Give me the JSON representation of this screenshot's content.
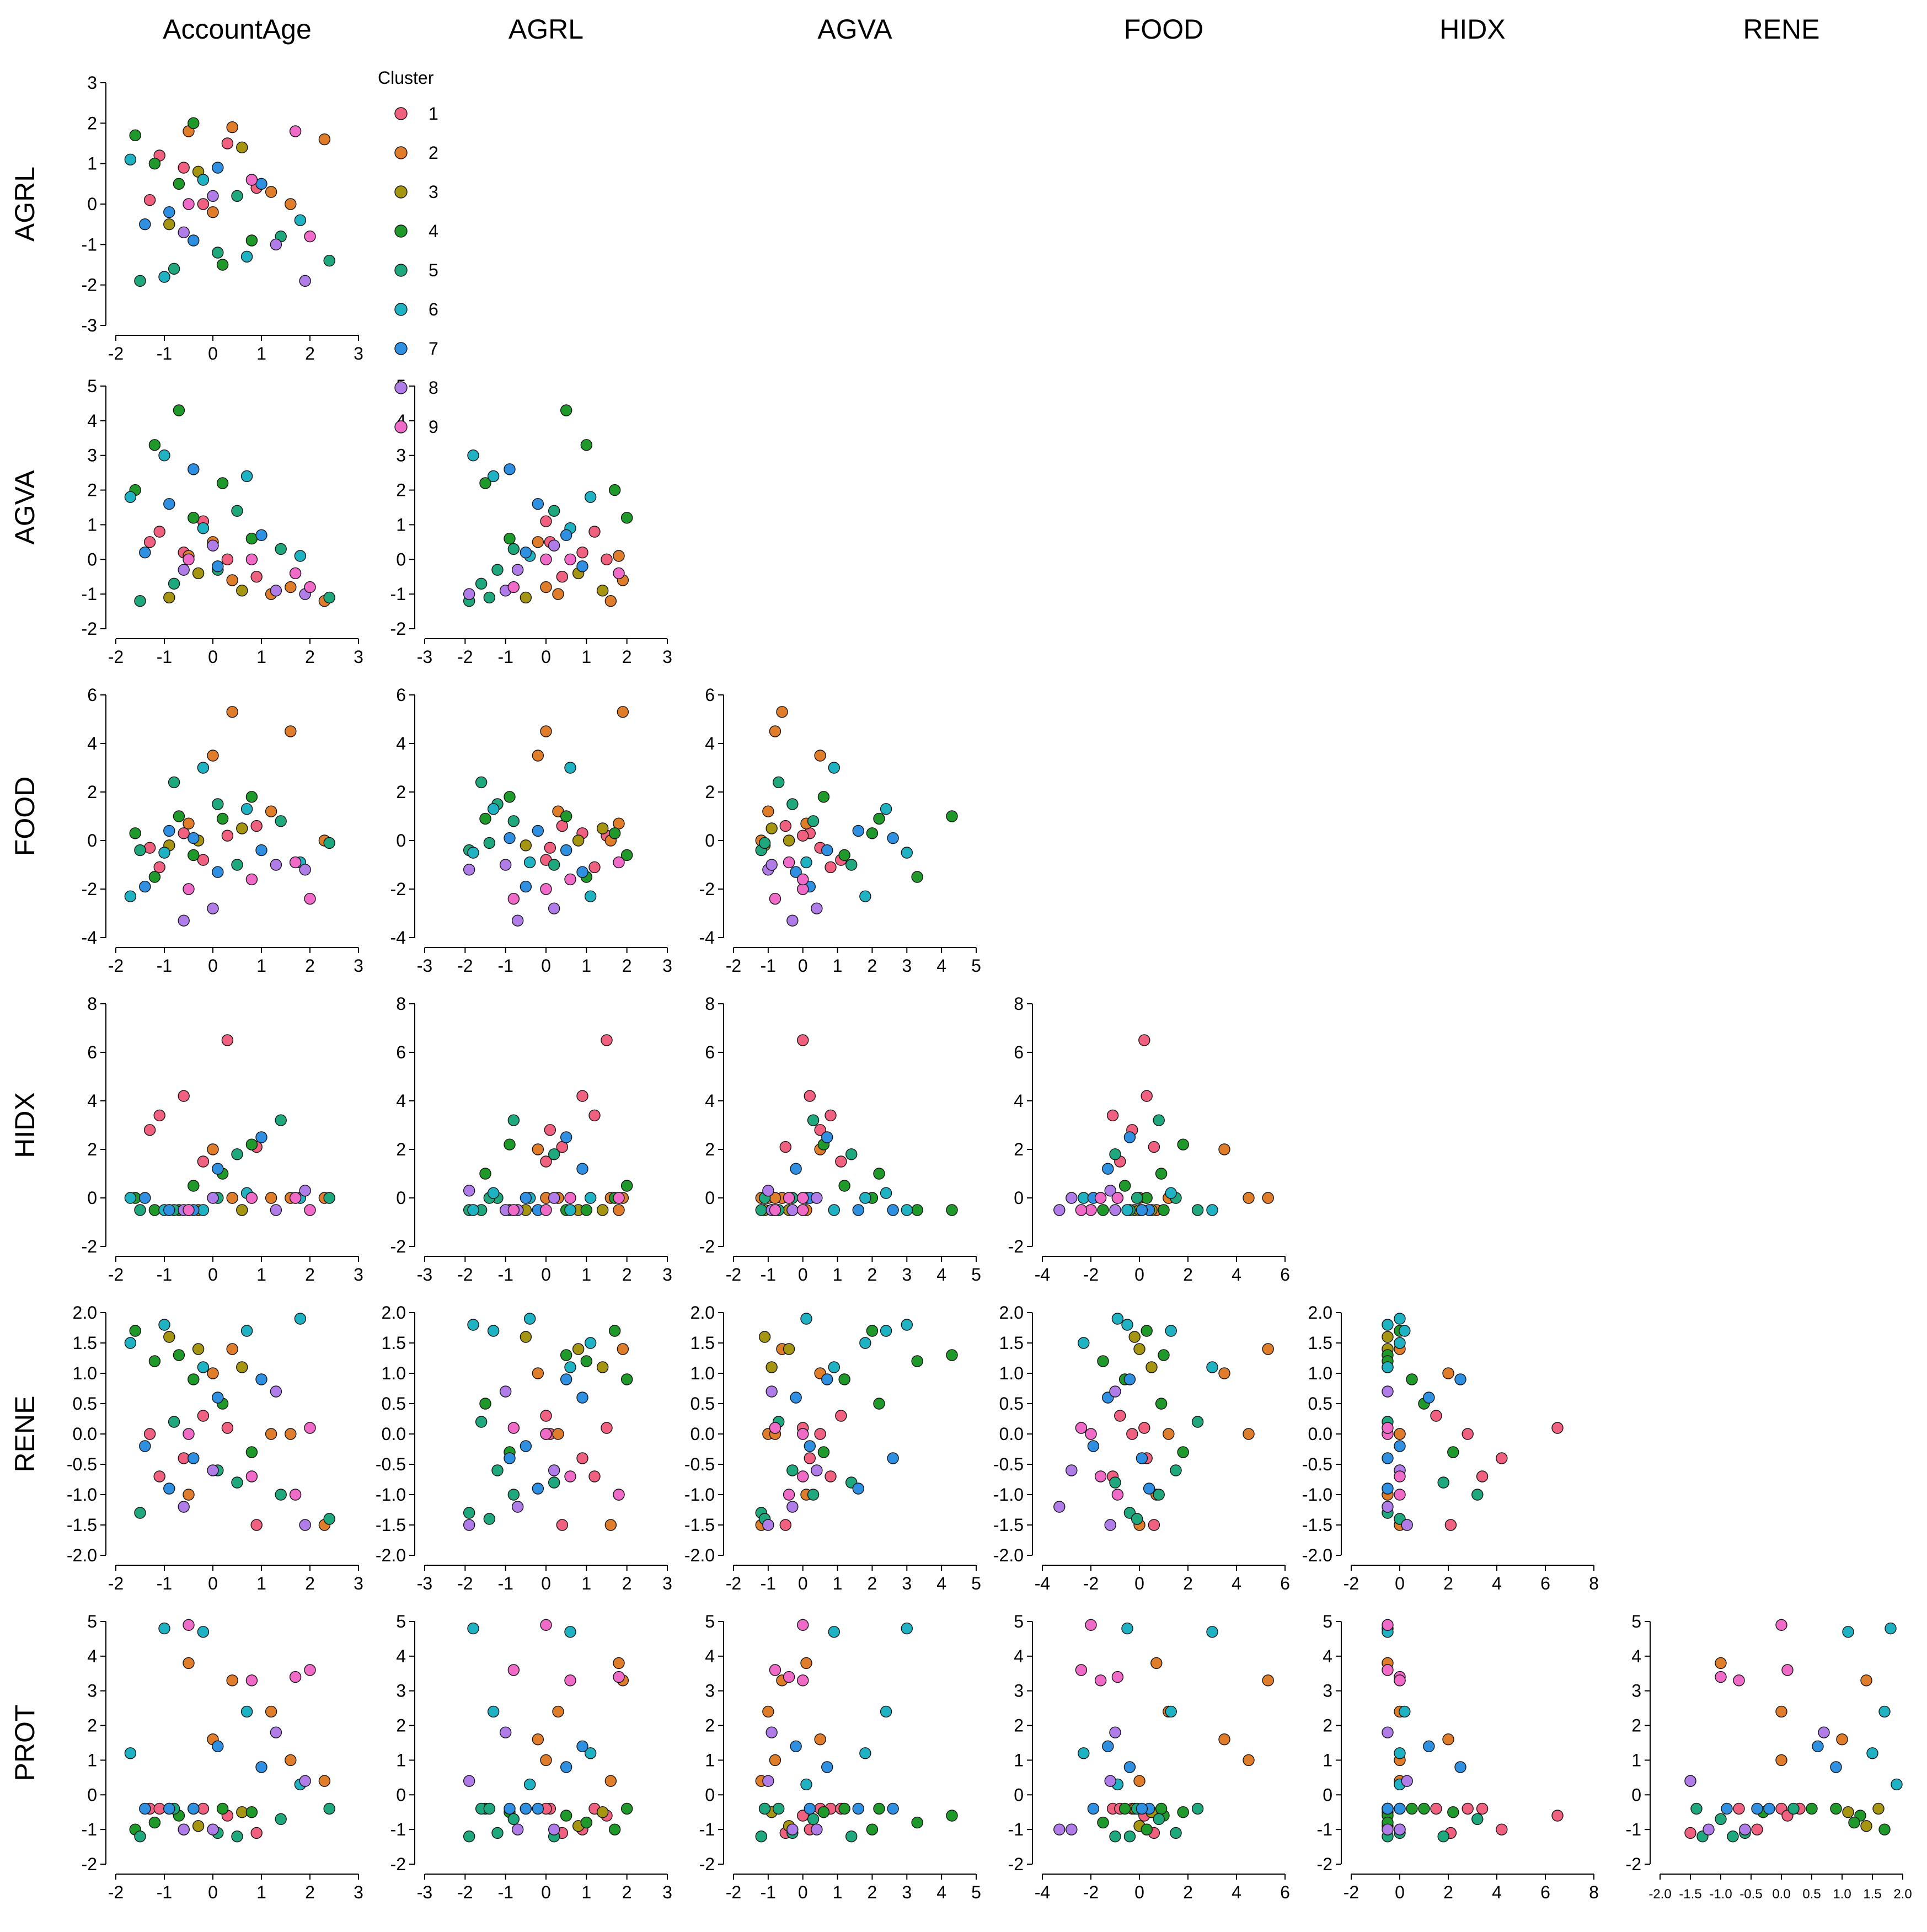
{
  "chart_data": {
    "type": "scatter",
    "title": "",
    "variables": [
      "AccountAge",
      "AGRL",
      "AGVA",
      "FOOD",
      "HIDX",
      "RENE",
      "PROT"
    ],
    "column_titles": [
      "AccountAge",
      "AGRL",
      "AGVA",
      "FOOD",
      "HIDX",
      "RENE"
    ],
    "row_titles": [
      "AGRL",
      "AGVA",
      "FOOD",
      "HIDX",
      "RENE",
      "PROT"
    ],
    "axis_ranges": {
      "AGRL_y": [
        -3,
        3
      ],
      "AGVA_y": [
        -2,
        5
      ],
      "FOOD_y": [
        -4,
        6
      ],
      "HIDX_y": [
        -2,
        8
      ],
      "RENE_y": [
        -2.0,
        2.0
      ],
      "PROT_y": [
        -2,
        5
      ]
    },
    "panels": [
      {
        "row": "AGRL",
        "col": "AccountAge",
        "xlim": [
          -2,
          3
        ],
        "xticks": [
          "-2",
          "-1",
          "0",
          "1",
          "2",
          "3"
        ],
        "ylim": [
          -3,
          3
        ],
        "yticks": [
          "-3",
          "-2",
          "-1",
          "0",
          "1",
          "2",
          "3"
        ]
      },
      {
        "row": "AGVA",
        "col": "AccountAge",
        "xlim": [
          -2,
          3
        ],
        "xticks": [
          "-2",
          "-1",
          "0",
          "1",
          "2",
          "3"
        ],
        "ylim": [
          -2,
          5
        ],
        "yticks": [
          "-2",
          "-1",
          "0",
          "1",
          "2",
          "3",
          "4",
          "5"
        ]
      },
      {
        "row": "AGVA",
        "col": "AGRL",
        "xlim": [
          -3,
          3
        ],
        "xticks": [
          "-3",
          "-2",
          "-1",
          "0",
          "1",
          "2",
          "3"
        ],
        "ylim": [
          -2,
          5
        ],
        "yticks": [
          "-2",
          "-1",
          "0",
          "1",
          "2",
          "3",
          "4",
          "5"
        ]
      },
      {
        "row": "FOOD",
        "col": "AccountAge",
        "xlim": [
          -2,
          3
        ],
        "xticks": [
          "-2",
          "-1",
          "0",
          "1",
          "2",
          "3"
        ],
        "ylim": [
          -4,
          6
        ],
        "yticks": [
          "-4",
          "-2",
          "0",
          "2",
          "4",
          "6"
        ]
      },
      {
        "row": "FOOD",
        "col": "AGRL",
        "xlim": [
          -3,
          3
        ],
        "xticks": [
          "-3",
          "-2",
          "-1",
          "0",
          "1",
          "2",
          "3"
        ],
        "ylim": [
          -4,
          6
        ],
        "yticks": [
          "-4",
          "-2",
          "0",
          "2",
          "4",
          "6"
        ]
      },
      {
        "row": "FOOD",
        "col": "AGVA",
        "xlim": [
          -2,
          5
        ],
        "xticks": [
          "-2",
          "-1",
          "0",
          "1",
          "2",
          "3",
          "4",
          "5"
        ],
        "ylim": [
          -4,
          6
        ],
        "yticks": [
          "-4",
          "-2",
          "0",
          "2",
          "4",
          "6"
        ]
      },
      {
        "row": "HIDX",
        "col": "AccountAge",
        "xlim": [
          -2,
          3
        ],
        "xticks": [
          "-2",
          "-1",
          "0",
          "1",
          "2",
          "3"
        ],
        "ylim": [
          -2,
          8
        ],
        "yticks": [
          "-2",
          "0",
          "2",
          "4",
          "6",
          "8"
        ]
      },
      {
        "row": "HIDX",
        "col": "AGRL",
        "xlim": [
          -3,
          3
        ],
        "xticks": [
          "-3",
          "-2",
          "-1",
          "0",
          "1",
          "2",
          "3"
        ],
        "ylim": [
          -2,
          8
        ],
        "yticks": [
          "-2",
          "0",
          "2",
          "4",
          "6",
          "8"
        ]
      },
      {
        "row": "HIDX",
        "col": "AGVA",
        "xlim": [
          -2,
          5
        ],
        "xticks": [
          "-2",
          "-1",
          "0",
          "1",
          "2",
          "3",
          "4",
          "5"
        ],
        "ylim": [
          -2,
          8
        ],
        "yticks": [
          "-2",
          "0",
          "2",
          "4",
          "6",
          "8"
        ]
      },
      {
        "row": "HIDX",
        "col": "FOOD",
        "xlim": [
          -4,
          6
        ],
        "xticks": [
          "-4",
          "-2",
          "0",
          "2",
          "4",
          "6"
        ],
        "ylim": [
          -2,
          8
        ],
        "yticks": [
          "-2",
          "0",
          "2",
          "4",
          "6",
          "8"
        ]
      },
      {
        "row": "RENE",
        "col": "AccountAge",
        "xlim": [
          -2,
          3
        ],
        "xticks": [
          "-2",
          "-1",
          "0",
          "1",
          "2",
          "3"
        ],
        "ylim": [
          -2.0,
          2.0
        ],
        "yticks": [
          "-2.0",
          "-1.5",
          "-1.0",
          "-0.5",
          "0.0",
          "0.5",
          "1.0",
          "1.5",
          "2.0"
        ]
      },
      {
        "row": "RENE",
        "col": "AGRL",
        "xlim": [
          -3,
          3
        ],
        "xticks": [
          "-3",
          "-2",
          "-1",
          "0",
          "1",
          "2",
          "3"
        ],
        "ylim": [
          -2.0,
          2.0
        ],
        "yticks": [
          "-2.0",
          "-1.5",
          "-1.0",
          "-0.5",
          "0.0",
          "0.5",
          "1.0",
          "1.5",
          "2.0"
        ]
      },
      {
        "row": "RENE",
        "col": "AGVA",
        "xlim": [
          -2,
          5
        ],
        "xticks": [
          "-2",
          "-1",
          "0",
          "1",
          "2",
          "3",
          "4",
          "5"
        ],
        "ylim": [
          -2.0,
          2.0
        ],
        "yticks": [
          "-2.0",
          "-1.5",
          "-1.0",
          "-0.5",
          "0.0",
          "0.5",
          "1.0",
          "1.5",
          "2.0"
        ]
      },
      {
        "row": "RENE",
        "col": "FOOD",
        "xlim": [
          -4,
          6
        ],
        "xticks": [
          "-4",
          "-2",
          "0",
          "2",
          "4",
          "6"
        ],
        "ylim": [
          -2.0,
          2.0
        ],
        "yticks": [
          "-2.0",
          "-1.5",
          "-1.0",
          "-0.5",
          "0.0",
          "0.5",
          "1.0",
          "1.5",
          "2.0"
        ]
      },
      {
        "row": "RENE",
        "col": "HIDX",
        "xlim": [
          -2,
          8
        ],
        "xticks": [
          "-2",
          "0",
          "2",
          "4",
          "6",
          "8"
        ],
        "ylim": [
          -2.0,
          2.0
        ],
        "yticks": [
          "-2.0",
          "-1.5",
          "-1.0",
          "-0.5",
          "0.0",
          "0.5",
          "1.0",
          "1.5",
          "2.0"
        ]
      },
      {
        "row": "PROT",
        "col": "AccountAge",
        "xlim": [
          -2,
          3
        ],
        "xticks": [
          "-2",
          "-1",
          "0",
          "1",
          "2",
          "3"
        ],
        "ylim": [
          -2,
          5
        ],
        "yticks": [
          "-2",
          "-1",
          "0",
          "1",
          "2",
          "3",
          "4",
          "5"
        ]
      },
      {
        "row": "PROT",
        "col": "AGRL",
        "xlim": [
          -3,
          3
        ],
        "xticks": [
          "-3",
          "-2",
          "-1",
          "0",
          "1",
          "2",
          "3"
        ],
        "ylim": [
          -2,
          5
        ],
        "yticks": [
          "-2",
          "-1",
          "0",
          "1",
          "2",
          "3",
          "4",
          "5"
        ]
      },
      {
        "row": "PROT",
        "col": "AGVA",
        "xlim": [
          -2,
          5
        ],
        "xticks": [
          "-2",
          "-1",
          "0",
          "1",
          "2",
          "3",
          "4",
          "5"
        ],
        "ylim": [
          -2,
          5
        ],
        "yticks": [
          "-2",
          "-1",
          "0",
          "1",
          "2",
          "3",
          "4",
          "5"
        ]
      },
      {
        "row": "PROT",
        "col": "FOOD",
        "xlim": [
          -4,
          6
        ],
        "xticks": [
          "-4",
          "-2",
          "0",
          "2",
          "4",
          "6"
        ],
        "ylim": [
          -2,
          5
        ],
        "yticks": [
          "-2",
          "-1",
          "0",
          "1",
          "2",
          "3",
          "4",
          "5"
        ]
      },
      {
        "row": "PROT",
        "col": "HIDX",
        "xlim": [
          -2,
          8
        ],
        "xticks": [
          "-2",
          "0",
          "2",
          "4",
          "6",
          "8"
        ],
        "ylim": [
          -2,
          5
        ],
        "yticks": [
          "-2",
          "-1",
          "0",
          "1",
          "2",
          "3",
          "4",
          "5"
        ]
      },
      {
        "row": "PROT",
        "col": "RENE",
        "xlim": [
          -2.0,
          2.0
        ],
        "xticks": [
          "-2.0",
          "-1.5",
          "-1.0",
          "-0.5",
          "0.0",
          "0.5",
          "1.0",
          "1.5",
          "2.0"
        ],
        "ylim": [
          -2,
          5
        ],
        "yticks": [
          "-2",
          "-1",
          "0",
          "1",
          "2",
          "3",
          "4",
          "5"
        ]
      }
    ],
    "legend": {
      "title": "Cluster",
      "position": "top-left, beside first panel",
      "entries": [
        "1",
        "2",
        "3",
        "4",
        "5",
        "6",
        "7",
        "8",
        "9"
      ]
    },
    "cluster_colors": [
      "#f0607f",
      "#e07d2a",
      "#a69510",
      "#1f9a2a",
      "#1fa77e",
      "#1fb2c2",
      "#2f8fe0",
      "#b07de8",
      "#f06ac8"
    ],
    "grid": false,
    "samples": [
      {
        "cluster": 1,
        "AccountAge": -1.3,
        "AGRL": 0.1,
        "AGVA": 0.5,
        "FOOD": -0.3,
        "HIDX": 2.8,
        "RENE": 0.0,
        "PROT": -0.4
      },
      {
        "cluster": 1,
        "AccountAge": -0.6,
        "AGRL": 0.9,
        "AGVA": 0.2,
        "FOOD": 0.3,
        "HIDX": 4.2,
        "RENE": -0.4,
        "PROT": -1.0
      },
      {
        "cluster": 1,
        "AccountAge": 0.3,
        "AGRL": 1.5,
        "AGVA": 0.0,
        "FOOD": 0.2,
        "HIDX": 6.5,
        "RENE": 0.1,
        "PROT": -0.6
      },
      {
        "cluster": 1,
        "AccountAge": -1.1,
        "AGRL": 1.2,
        "AGVA": 0.8,
        "FOOD": -1.1,
        "HIDX": 3.4,
        "RENE": -0.7,
        "PROT": -0.4
      },
      {
        "cluster": 1,
        "AccountAge": 0.9,
        "AGRL": 0.4,
        "AGVA": -0.5,
        "FOOD": 0.6,
        "HIDX": 2.1,
        "RENE": -1.5,
        "PROT": -1.1
      },
      {
        "cluster": 1,
        "AccountAge": -0.2,
        "AGRL": 0.0,
        "AGVA": 1.1,
        "FOOD": -0.8,
        "HIDX": 1.5,
        "RENE": 0.3,
        "PROT": -0.4
      },
      {
        "cluster": 2,
        "AccountAge": 0.4,
        "AGRL": 1.9,
        "AGVA": -0.6,
        "FOOD": 5.3,
        "HIDX": 0.0,
        "RENE": 1.4,
        "PROT": 3.3
      },
      {
        "cluster": 2,
        "AccountAge": 1.2,
        "AGRL": 0.3,
        "AGVA": -1.0,
        "FOOD": 1.2,
        "HIDX": 0.0,
        "RENE": 0.0,
        "PROT": 2.4
      },
      {
        "cluster": 2,
        "AccountAge": 2.3,
        "AGRL": 1.6,
        "AGVA": -1.2,
        "FOOD": 0.0,
        "HIDX": 0.0,
        "RENE": -1.5,
        "PROT": 0.4
      },
      {
        "cluster": 2,
        "AccountAge": 0.0,
        "AGRL": -0.2,
        "AGVA": 0.5,
        "FOOD": 3.5,
        "HIDX": 2.0,
        "RENE": 1.0,
        "PROT": 1.6
      },
      {
        "cluster": 2,
        "AccountAge": -0.5,
        "AGRL": 1.8,
        "AGVA": 0.1,
        "FOOD": 0.7,
        "HIDX": -0.5,
        "RENE": -1.0,
        "PROT": 3.8
      },
      {
        "cluster": 2,
        "AccountAge": 1.6,
        "AGRL": 0.0,
        "AGVA": -0.8,
        "FOOD": 4.5,
        "HIDX": 0.0,
        "RENE": 0.0,
        "PROT": 1.0
      },
      {
        "cluster": 3,
        "AccountAge": -0.9,
        "AGRL": -0.5,
        "AGVA": -1.1,
        "FOOD": -0.2,
        "HIDX": -0.5,
        "RENE": 1.6,
        "PROT": -0.4
      },
      {
        "cluster": 3,
        "AccountAge": 0.6,
        "AGRL": 1.4,
        "AGVA": -0.9,
        "FOOD": 0.5,
        "HIDX": -0.5,
        "RENE": 1.1,
        "PROT": -0.5
      },
      {
        "cluster": 3,
        "AccountAge": -0.3,
        "AGRL": 0.8,
        "AGVA": -0.4,
        "FOOD": 0.0,
        "HIDX": -0.5,
        "RENE": 1.4,
        "PROT": -0.9
      },
      {
        "cluster": 4,
        "AccountAge": -0.7,
        "AGRL": 0.5,
        "AGVA": 4.3,
        "FOOD": 1.0,
        "HIDX": -0.5,
        "RENE": 1.3,
        "PROT": -0.6
      },
      {
        "cluster": 4,
        "AccountAge": -1.6,
        "AGRL": 1.7,
        "AGVA": 2.0,
        "FOOD": 0.3,
        "HIDX": 0.0,
        "RENE": 1.7,
        "PROT": -1.0
      },
      {
        "cluster": 4,
        "AccountAge": -0.4,
        "AGRL": 2.0,
        "AGVA": 1.2,
        "FOOD": -0.6,
        "HIDX": 0.5,
        "RENE": 0.9,
        "PROT": -0.4
      },
      {
        "cluster": 4,
        "AccountAge": 0.8,
        "AGRL": -0.9,
        "AGVA": 0.6,
        "FOOD": 1.8,
        "HIDX": 2.2,
        "RENE": -0.3,
        "PROT": -0.5
      },
      {
        "cluster": 4,
        "AccountAge": -1.2,
        "AGRL": 1.0,
        "AGVA": 3.3,
        "FOOD": -1.5,
        "HIDX": -0.5,
        "RENE": 1.2,
        "PROT": -0.8
      },
      {
        "cluster": 4,
        "AccountAge": 0.2,
        "AGRL": -1.5,
        "AGVA": 2.2,
        "FOOD": 0.9,
        "HIDX": 1.0,
        "RENE": 0.5,
        "PROT": -0.4
      },
      {
        "cluster": 5,
        "AccountAge": -1.5,
        "AGRL": -1.9,
        "AGVA": -1.2,
        "FOOD": -0.4,
        "HIDX": -0.5,
        "RENE": -1.3,
        "PROT": -1.2
      },
      {
        "cluster": 5,
        "AccountAge": 0.1,
        "AGRL": -1.2,
        "AGVA": -0.3,
        "FOOD": 1.5,
        "HIDX": 0.0,
        "RENE": -0.6,
        "PROT": -1.1
      },
      {
        "cluster": 5,
        "AccountAge": 1.4,
        "AGRL": -0.8,
        "AGVA": 0.3,
        "FOOD": 0.8,
        "HIDX": 3.2,
        "RENE": -1.0,
        "PROT": -0.7
      },
      {
        "cluster": 5,
        "AccountAge": -0.8,
        "AGRL": -1.6,
        "AGVA": -0.7,
        "FOOD": 2.4,
        "HIDX": -0.5,
        "RENE": 0.2,
        "PROT": -0.4
      },
      {
        "cluster": 5,
        "AccountAge": 2.4,
        "AGRL": -1.4,
        "AGVA": -1.1,
        "FOOD": -0.1,
        "HIDX": 0.0,
        "RENE": -1.4,
        "PROT": -0.4
      },
      {
        "cluster": 5,
        "AccountAge": 0.5,
        "AGRL": 0.2,
        "AGVA": 1.4,
        "FOOD": -1.0,
        "HIDX": 1.8,
        "RENE": -0.8,
        "PROT": -1.2
      },
      {
        "cluster": 6,
        "AccountAge": -1.0,
        "AGRL": -1.8,
        "AGVA": 3.0,
        "FOOD": -0.5,
        "HIDX": -0.5,
        "RENE": 1.8,
        "PROT": 4.8
      },
      {
        "cluster": 6,
        "AccountAge": -1.7,
        "AGRL": 1.1,
        "AGVA": 1.8,
        "FOOD": -2.3,
        "HIDX": 0.0,
        "RENE": 1.5,
        "PROT": 1.2
      },
      {
        "cluster": 6,
        "AccountAge": 0.7,
        "AGRL": -1.3,
        "AGVA": 2.4,
        "FOOD": 1.3,
        "HIDX": 0.2,
        "RENE": 1.7,
        "PROT": 2.4
      },
      {
        "cluster": 6,
        "AccountAge": -0.2,
        "AGRL": 0.6,
        "AGVA": 0.9,
        "FOOD": 3.0,
        "HIDX": -0.5,
        "RENE": 1.1,
        "PROT": 4.7
      },
      {
        "cluster": 6,
        "AccountAge": 1.8,
        "AGRL": -0.4,
        "AGVA": 0.1,
        "FOOD": -0.9,
        "HIDX": 0.0,
        "RENE": 1.9,
        "PROT": 0.3
      },
      {
        "cluster": 7,
        "AccountAge": -1.4,
        "AGRL": -0.5,
        "AGVA": 0.2,
        "FOOD": -1.9,
        "HIDX": 0.0,
        "RENE": -0.2,
        "PROT": -0.4
      },
      {
        "cluster": 7,
        "AccountAge": 0.1,
        "AGRL": 0.9,
        "AGVA": -0.2,
        "FOOD": -1.3,
        "HIDX": 1.2,
        "RENE": 0.6,
        "PROT": 1.4
      },
      {
        "cluster": 7,
        "AccountAge": -0.9,
        "AGRL": -0.2,
        "AGVA": 1.6,
        "FOOD": 0.4,
        "HIDX": -0.5,
        "RENE": -0.9,
        "PROT": -0.4
      },
      {
        "cluster": 7,
        "AccountAge": 1.0,
        "AGRL": 0.5,
        "AGVA": 0.7,
        "FOOD": -0.4,
        "HIDX": 2.5,
        "RENE": 0.9,
        "PROT": 0.8
      },
      {
        "cluster": 7,
        "AccountAge": -0.4,
        "AGRL": -0.9,
        "AGVA": 2.6,
        "FOOD": 0.1,
        "HIDX": -0.5,
        "RENE": -0.4,
        "PROT": -0.4
      },
      {
        "cluster": 8,
        "AccountAge": -0.6,
        "AGRL": -0.7,
        "AGVA": -0.3,
        "FOOD": -3.3,
        "HIDX": -0.5,
        "RENE": -1.2,
        "PROT": -1.0
      },
      {
        "cluster": 8,
        "AccountAge": 1.9,
        "AGRL": -1.9,
        "AGVA": -1.0,
        "FOOD": -1.2,
        "HIDX": 0.3,
        "RENE": -1.5,
        "PROT": 0.4
      },
      {
        "cluster": 8,
        "AccountAge": 1.3,
        "AGRL": -1.0,
        "AGVA": -0.9,
        "FOOD": -1.0,
        "HIDX": -0.5,
        "RENE": 0.7,
        "PROT": 1.8
      },
      {
        "cluster": 8,
        "AccountAge": 0.0,
        "AGRL": 0.2,
        "AGVA": 0.4,
        "FOOD": -2.8,
        "HIDX": 0.0,
        "RENE": -0.6,
        "PROT": -1.0
      },
      {
        "cluster": 9,
        "AccountAge": -0.5,
        "AGRL": 0.0,
        "AGVA": 0.0,
        "FOOD": -2.0,
        "HIDX": -0.5,
        "RENE": 0.0,
        "PROT": 4.9
      },
      {
        "cluster": 9,
        "AccountAge": 1.7,
        "AGRL": 1.8,
        "AGVA": -0.4,
        "FOOD": -0.9,
        "HIDX": 0.0,
        "RENE": -1.0,
        "PROT": 3.4
      },
      {
        "cluster": 9,
        "AccountAge": 2.0,
        "AGRL": -0.8,
        "AGVA": -0.8,
        "FOOD": -2.4,
        "HIDX": -0.5,
        "RENE": 0.1,
        "PROT": 3.6
      },
      {
        "cluster": 9,
        "AccountAge": 0.8,
        "AGRL": 0.6,
        "AGVA": 0.0,
        "FOOD": -1.6,
        "HIDX": 0.0,
        "RENE": -0.7,
        "PROT": 3.3
      }
    ]
  }
}
